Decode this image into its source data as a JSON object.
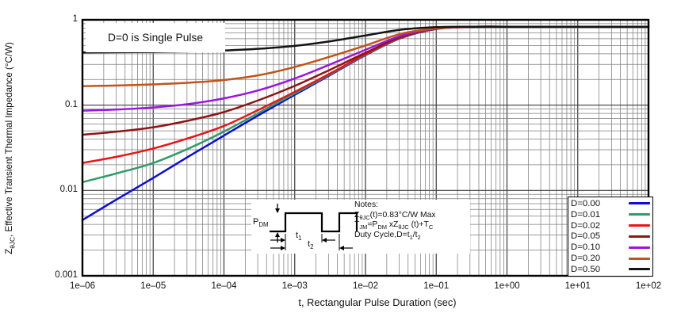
{
  "chart_data": {
    "type": "line",
    "annotation": "D=0 is Single Pulse",
    "xlabel": "t, Rectangular Pulse Duration (sec)",
    "ylabel": "Z~θJC~, Effective Transient Thermal Impedance (°C/W)",
    "x_scale": "log",
    "y_scale": "log",
    "xlim": [
      1e-06,
      100
    ],
    "ylim": [
      0.001,
      1
    ],
    "x_ticks": [
      1e-06,
      1e-05,
      0.0001,
      0.001,
      0.01,
      0.1,
      1,
      10,
      100
    ],
    "x_tick_labels": [
      "1e–06",
      "1e–05",
      "1e–04",
      "1e–03",
      "1e–02",
      "1e–01",
      "1e+00",
      "1e+01",
      "1e+02"
    ],
    "y_ticks": [
      1,
      0.1,
      0.01,
      0.001
    ],
    "y_tick_labels": [
      "1",
      "0.1",
      "0.01",
      "0.001"
    ],
    "grid": "log major and minor, on",
    "legend_position": "bottom-right",
    "max_impedance_asymptote": 0.83,
    "x": [
      1e-06,
      3.16e-06,
      1e-05,
      3.16e-05,
      0.0001,
      0.000316,
      0.001,
      0.00316,
      0.01,
      0.0316,
      0.1,
      0.316,
      1,
      3.16,
      10,
      31.6,
      100
    ],
    "series": [
      {
        "name": "D=0.00",
        "color": "#0d0dd6",
        "values": [
          0.0045,
          0.008,
          0.014,
          0.025,
          0.044,
          0.077,
          0.132,
          0.225,
          0.385,
          0.61,
          0.78,
          0.825,
          0.83,
          0.83,
          0.83,
          0.83,
          0.83
        ]
      },
      {
        "name": "D=0.01",
        "color": "#319c68",
        "values": [
          0.0125,
          0.016,
          0.021,
          0.031,
          0.049,
          0.082,
          0.137,
          0.23,
          0.39,
          0.615,
          0.782,
          0.826,
          0.83,
          0.83,
          0.83,
          0.83,
          0.83
        ]
      },
      {
        "name": "D=0.02",
        "color": "#ea1414",
        "values": [
          0.021,
          0.025,
          0.031,
          0.041,
          0.057,
          0.089,
          0.143,
          0.235,
          0.395,
          0.62,
          0.783,
          0.826,
          0.83,
          0.83,
          0.83,
          0.83,
          0.83
        ]
      },
      {
        "name": "D=0.05",
        "color": "#8e1515",
        "values": [
          0.045,
          0.049,
          0.055,
          0.066,
          0.083,
          0.115,
          0.168,
          0.26,
          0.41,
          0.63,
          0.786,
          0.827,
          0.83,
          0.83,
          0.83,
          0.83,
          0.83
        ]
      },
      {
        "name": "D=0.10",
        "color": "#9c15dd",
        "values": [
          0.086,
          0.089,
          0.094,
          0.103,
          0.12,
          0.15,
          0.205,
          0.3,
          0.445,
          0.65,
          0.79,
          0.827,
          0.83,
          0.83,
          0.83,
          0.83,
          0.83
        ]
      },
      {
        "name": "D=0.20",
        "color": "#c25417",
        "values": [
          0.167,
          0.17,
          0.175,
          0.183,
          0.197,
          0.225,
          0.28,
          0.37,
          0.5,
          0.685,
          0.795,
          0.828,
          0.83,
          0.83,
          0.83,
          0.83,
          0.83
        ]
      },
      {
        "name": "D=0.50",
        "color": "#141414",
        "values": [
          0.415,
          0.417,
          0.42,
          0.426,
          0.437,
          0.458,
          0.495,
          0.56,
          0.655,
          0.765,
          0.82,
          0.83,
          0.83,
          0.83,
          0.83,
          0.83,
          0.83
        ]
      }
    ]
  },
  "notes_box": {
    "lines": [
      "Notes:",
      "Z~θJC~(t)=0.83°C/W Max",
      "T~JM~=P~DM~ xZ~θJC~ (t)+T~C~",
      "Duty Cycle,D=t~1~/t~2~"
    ],
    "pulse_labels": {
      "amplitude": "P~DM~",
      "t1": "t~1~",
      "t2": "t~2~"
    }
  }
}
